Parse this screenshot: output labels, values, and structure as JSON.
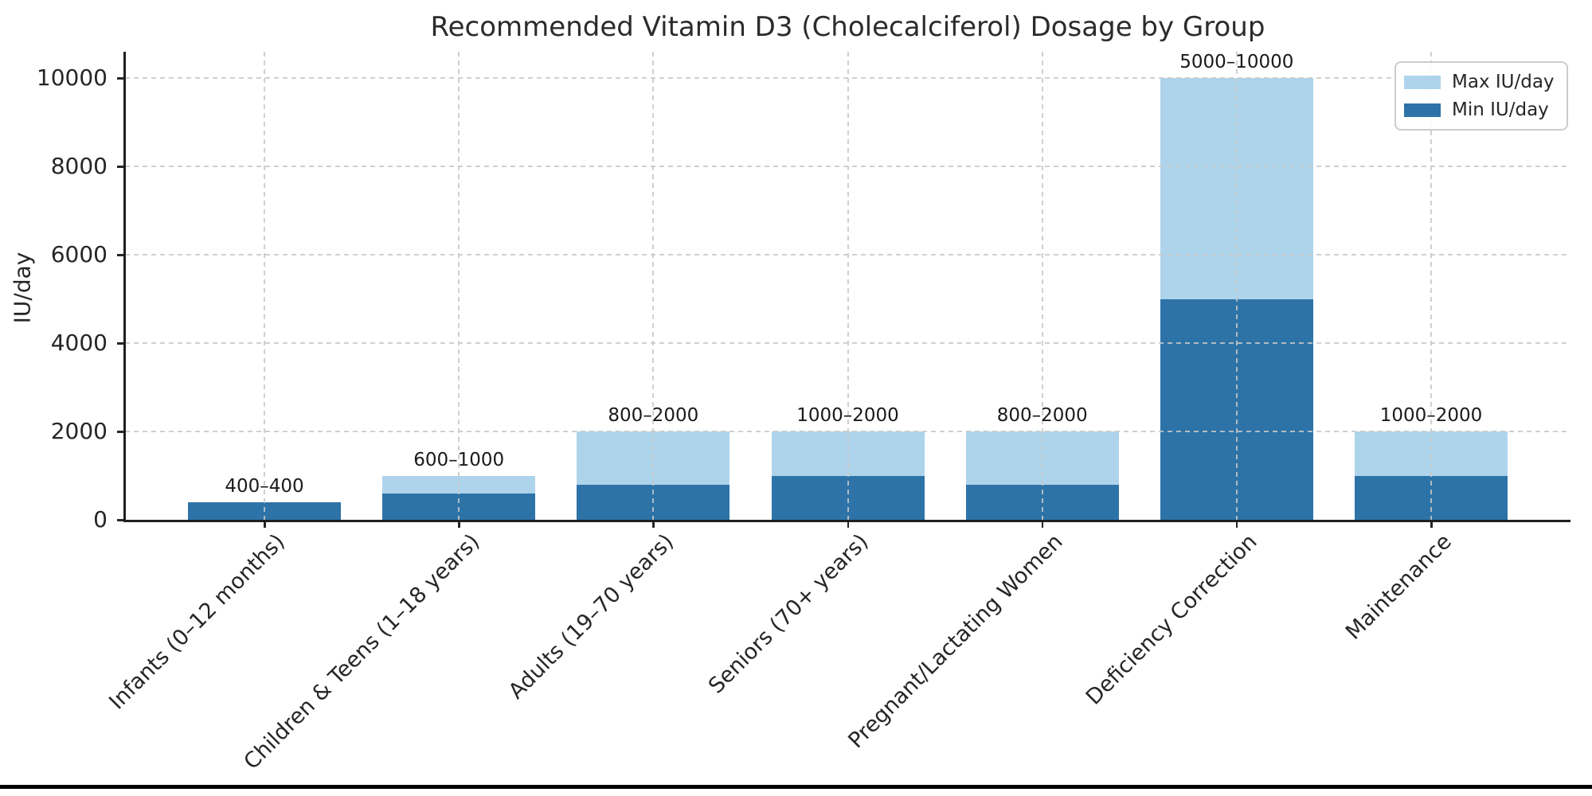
{
  "chart_data": {
    "type": "bar",
    "variant": "stacked-range",
    "title": "Recommended Vitamin D3 (Cholecalciferol) Dosage by Group",
    "xlabel": "",
    "ylabel": "IU/day",
    "categories": [
      "Infants (0–12 months)",
      "Children & Teens (1–18 years)",
      "Adults (19–70 years)",
      "Seniors (70+ years)",
      "Pregnant/Lactating Women",
      "Deficiency Correction",
      "Maintenance"
    ],
    "series": [
      {
        "name": "Min IU/day",
        "color": "#2d73a8",
        "values": [
          400,
          600,
          800,
          1000,
          800,
          5000,
          1000
        ]
      },
      {
        "name": "Max IU/day",
        "color": "#aed4ec",
        "values": [
          400,
          1000,
          2000,
          2000,
          2000,
          10000,
          2000
        ]
      }
    ],
    "bar_labels": [
      "400–400",
      "600–1000",
      "800–2000",
      "1000–2000",
      "800–2000",
      "5000–10000",
      "1000–2000"
    ],
    "yticks": [
      0,
      2000,
      4000,
      6000,
      8000,
      10000
    ],
    "ylim": [
      0,
      10600
    ],
    "grid": {
      "x": true,
      "y": true,
      "style": "dashed",
      "above_bars": true
    },
    "legend": {
      "position": "upper right",
      "entries": [
        {
          "label": "Max IU/day",
          "color": "#aed4ec"
        },
        {
          "label": "Min IU/day",
          "color": "#2d73a8"
        }
      ]
    }
  }
}
